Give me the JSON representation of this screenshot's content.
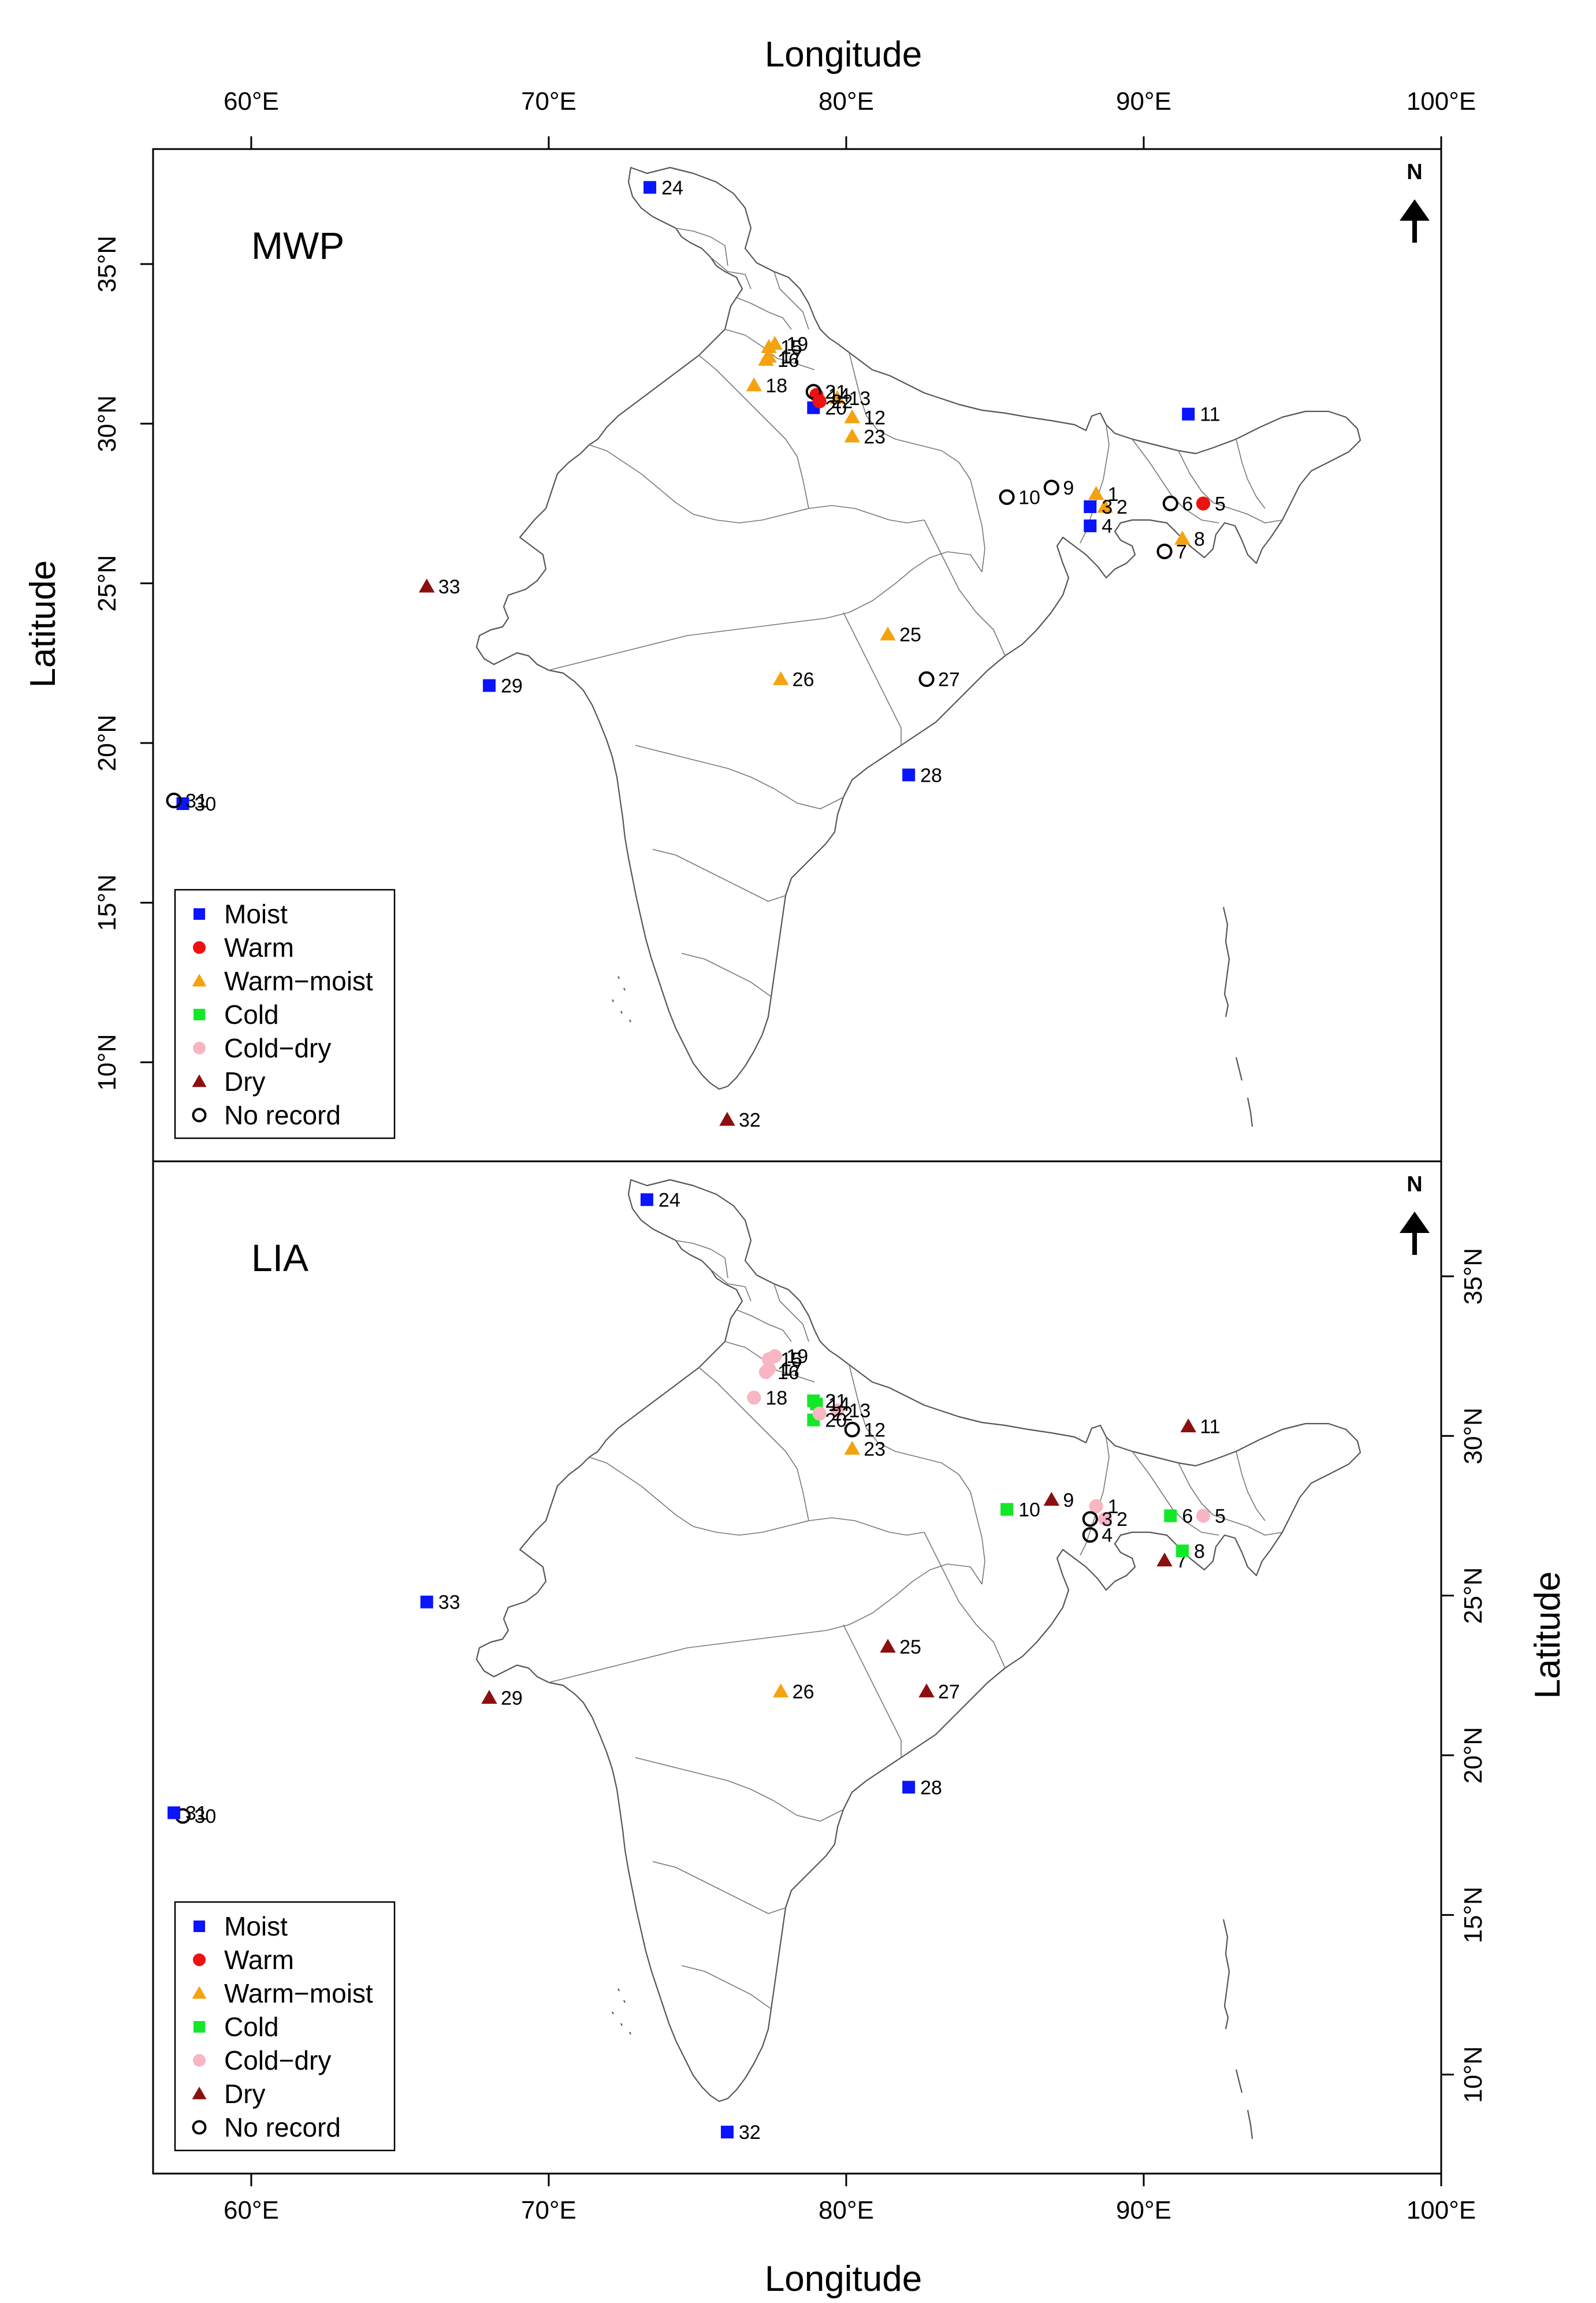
{
  "axes": {
    "x_title": "Longitude",
    "y_title": "Latitude",
    "x_ticks": [
      "60°E",
      "70°E",
      "80°E",
      "90°E",
      "100°E"
    ],
    "x_tick_values": [
      60,
      70,
      80,
      90,
      100
    ],
    "y_ticks": [
      "10°N",
      "15°N",
      "20°N",
      "25°N",
      "30°N",
      "35°N"
    ],
    "y_tick_values": [
      10,
      15,
      20,
      25,
      30,
      35
    ],
    "xlim": [
      56.7,
      100
    ],
    "ylim": [
      6.9,
      38.6
    ]
  },
  "north_arrow_label": "N",
  "legend": [
    {
      "key": "moist",
      "label": "Moist",
      "color": "#0a14ff",
      "marker": "square"
    },
    {
      "key": "warm",
      "label": "Warm",
      "color": "#ee1111",
      "marker": "circle"
    },
    {
      "key": "warm_moist",
      "label": "Warm−moist",
      "color": "#f5a20f",
      "marker": "triangle"
    },
    {
      "key": "cold",
      "label": "Cold",
      "color": "#12e828",
      "marker": "square"
    },
    {
      "key": "cold_dry",
      "label": "Cold−dry",
      "color": "#f7b6c1",
      "marker": "circle"
    },
    {
      "key": "dry",
      "label": "Dry",
      "color": "#8b0f0f",
      "marker": "triangle"
    },
    {
      "key": "no_record",
      "label": "No record",
      "color": "#000000",
      "marker": "open-circle"
    }
  ],
  "chart_data": [
    {
      "type": "scatter",
      "title": "MWP",
      "xlabel": "Longitude",
      "ylabel": "Latitude",
      "sites": [
        {
          "id": "1",
          "lon": 88.4,
          "lat": 27.8,
          "cat": "warm_moist"
        },
        {
          "id": "2",
          "lon": 88.7,
          "lat": 27.4,
          "cat": "warm_moist"
        },
        {
          "id": "3",
          "lon": 88.2,
          "lat": 27.4,
          "cat": "moist"
        },
        {
          "id": "4",
          "lon": 88.2,
          "lat": 26.8,
          "cat": "moist"
        },
        {
          "id": "5",
          "lon": 92.0,
          "lat": 27.5,
          "cat": "warm"
        },
        {
          "id": "6",
          "lon": 90.9,
          "lat": 27.5,
          "cat": "no_record"
        },
        {
          "id": "7",
          "lon": 90.7,
          "lat": 26.0,
          "cat": "no_record"
        },
        {
          "id": "8",
          "lon": 91.3,
          "lat": 26.4,
          "cat": "warm_moist"
        },
        {
          "id": "9",
          "lon": 86.9,
          "lat": 28.0,
          "cat": "no_record"
        },
        {
          "id": "10",
          "lon": 85.4,
          "lat": 27.7,
          "cat": "no_record"
        },
        {
          "id": "11",
          "lon": 91.5,
          "lat": 30.3,
          "cat": "moist"
        },
        {
          "id": "12",
          "lon": 80.2,
          "lat": 30.2,
          "cat": "warm_moist"
        },
        {
          "id": "13",
          "lon": 79.7,
          "lat": 30.8,
          "cat": "warm_moist"
        },
        {
          "id": "14",
          "lon": 79.0,
          "lat": 30.9,
          "cat": "warm"
        },
        {
          "id": "15",
          "lon": 77.4,
          "lat": 32.4,
          "cat": "warm_moist"
        },
        {
          "id": "16",
          "lon": 77.3,
          "lat": 32.0,
          "cat": "warm_moist"
        },
        {
          "id": "17",
          "lon": 77.4,
          "lat": 32.1,
          "cat": "warm_moist"
        },
        {
          "id": "18",
          "lon": 76.9,
          "lat": 31.2,
          "cat": "warm_moist"
        },
        {
          "id": "19",
          "lon": 77.6,
          "lat": 32.5,
          "cat": "warm_moist"
        },
        {
          "id": "20",
          "lon": 78.9,
          "lat": 30.5,
          "cat": "moist"
        },
        {
          "id": "21",
          "lon": 78.9,
          "lat": 31.0,
          "cat": "no_record"
        },
        {
          "id": "22",
          "lon": 79.1,
          "lat": 30.7,
          "cat": "warm"
        },
        {
          "id": "23",
          "lon": 80.2,
          "lat": 29.6,
          "cat": "warm_moist"
        },
        {
          "id": "24",
          "lon": 73.4,
          "lat": 37.4,
          "cat": "moist"
        },
        {
          "id": "25",
          "lon": 81.4,
          "lat": 23.4,
          "cat": "warm_moist"
        },
        {
          "id": "26",
          "lon": 77.8,
          "lat": 22.0,
          "cat": "warm_moist"
        },
        {
          "id": "27",
          "lon": 82.7,
          "lat": 22.0,
          "cat": "no_record"
        },
        {
          "id": "28",
          "lon": 82.1,
          "lat": 19.0,
          "cat": "moist"
        },
        {
          "id": "29",
          "lon": 68.0,
          "lat": 21.8,
          "cat": "moist"
        },
        {
          "id": "30",
          "lon": 57.7,
          "lat": 18.1,
          "cat": "moist"
        },
        {
          "id": "31",
          "lon": 57.4,
          "lat": 18.2,
          "cat": "no_record"
        },
        {
          "id": "32",
          "lon": 76.0,
          "lat": 8.2,
          "cat": "dry"
        },
        {
          "id": "33",
          "lon": 65.9,
          "lat": 24.9,
          "cat": "dry"
        }
      ]
    },
    {
      "type": "scatter",
      "title": "LIA",
      "xlabel": "Longitude",
      "ylabel": "Latitude",
      "sites": [
        {
          "id": "1",
          "lon": 88.4,
          "lat": 27.8,
          "cat": "cold_dry"
        },
        {
          "id": "2",
          "lon": 88.7,
          "lat": 27.4,
          "cat": "cold_dry"
        },
        {
          "id": "3",
          "lon": 88.2,
          "lat": 27.4,
          "cat": "no_record"
        },
        {
          "id": "4",
          "lon": 88.2,
          "lat": 26.9,
          "cat": "no_record"
        },
        {
          "id": "5",
          "lon": 92.0,
          "lat": 27.5,
          "cat": "cold_dry"
        },
        {
          "id": "6",
          "lon": 90.9,
          "lat": 27.5,
          "cat": "cold"
        },
        {
          "id": "7",
          "lon": 90.7,
          "lat": 26.1,
          "cat": "dry"
        },
        {
          "id": "8",
          "lon": 91.3,
          "lat": 26.4,
          "cat": "cold"
        },
        {
          "id": "9",
          "lon": 86.9,
          "lat": 28.0,
          "cat": "dry"
        },
        {
          "id": "10",
          "lon": 85.4,
          "lat": 27.7,
          "cat": "cold"
        },
        {
          "id": "11",
          "lon": 91.5,
          "lat": 30.3,
          "cat": "dry"
        },
        {
          "id": "12",
          "lon": 80.2,
          "lat": 30.2,
          "cat": "no_record"
        },
        {
          "id": "13",
          "lon": 79.7,
          "lat": 30.8,
          "cat": "cold_dry"
        },
        {
          "id": "14",
          "lon": 79.0,
          "lat": 31.0,
          "cat": "cold"
        },
        {
          "id": "15",
          "lon": 77.4,
          "lat": 32.4,
          "cat": "cold_dry"
        },
        {
          "id": "16",
          "lon": 77.3,
          "lat": 32.0,
          "cat": "cold_dry"
        },
        {
          "id": "17",
          "lon": 77.4,
          "lat": 32.1,
          "cat": "cold_dry"
        },
        {
          "id": "18",
          "lon": 76.9,
          "lat": 31.2,
          "cat": "cold_dry"
        },
        {
          "id": "19",
          "lon": 77.6,
          "lat": 32.5,
          "cat": "cold_dry"
        },
        {
          "id": "20",
          "lon": 78.9,
          "lat": 30.5,
          "cat": "cold"
        },
        {
          "id": "21",
          "lon": 78.9,
          "lat": 31.1,
          "cat": "cold"
        },
        {
          "id": "22",
          "lon": 79.1,
          "lat": 30.7,
          "cat": "cold_dry"
        },
        {
          "id": "23",
          "lon": 80.2,
          "lat": 29.6,
          "cat": "warm_moist"
        },
        {
          "id": "24",
          "lon": 73.3,
          "lat": 37.4,
          "cat": "moist"
        },
        {
          "id": "25",
          "lon": 81.4,
          "lat": 23.4,
          "cat": "dry"
        },
        {
          "id": "26",
          "lon": 77.8,
          "lat": 22.0,
          "cat": "warm_moist"
        },
        {
          "id": "27",
          "lon": 82.7,
          "lat": 22.0,
          "cat": "dry"
        },
        {
          "id": "28",
          "lon": 82.1,
          "lat": 19.0,
          "cat": "moist"
        },
        {
          "id": "29",
          "lon": 68.0,
          "lat": 21.8,
          "cat": "dry"
        },
        {
          "id": "30",
          "lon": 57.7,
          "lat": 18.1,
          "cat": "no_record"
        },
        {
          "id": "31",
          "lon": 57.4,
          "lat": 18.2,
          "cat": "moist"
        },
        {
          "id": "32",
          "lon": 76.0,
          "lat": 8.2,
          "cat": "moist"
        },
        {
          "id": "33",
          "lon": 65.9,
          "lat": 24.8,
          "cat": "moist"
        }
      ]
    }
  ]
}
